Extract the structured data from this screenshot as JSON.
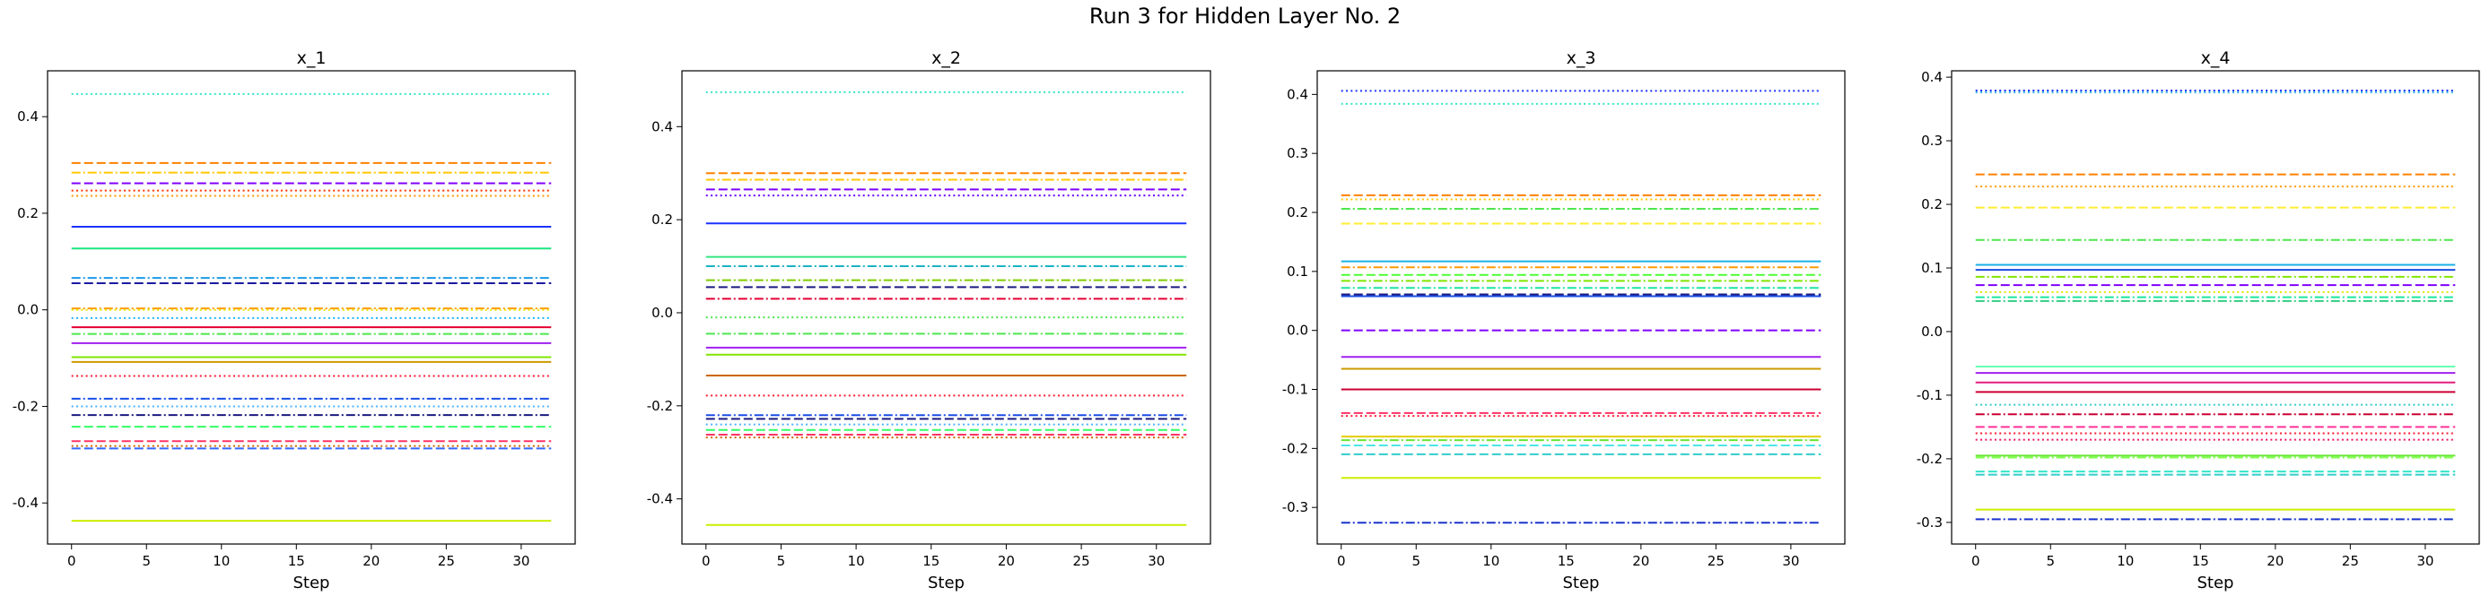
{
  "suptitle": "Run 3 for Hidden Layer No. 2",
  "chart_data": [
    {
      "type": "line",
      "title": "x_1",
      "xlabel": "Step",
      "ylabel": "",
      "xlim": [
        -1.6,
        33.6
      ],
      "ylim": [
        -0.485,
        0.495
      ],
      "xticks": [
        0,
        5,
        10,
        15,
        20,
        25,
        30
      ],
      "yticks": [
        -0.4,
        -0.2,
        0.0,
        0.2,
        0.4
      ],
      "x": [
        0,
        32
      ],
      "series": [
        {
          "value": 0.447,
          "color": "#33e6c8",
          "style": "dotted"
        },
        {
          "value": 0.304,
          "color": "#ff8000",
          "style": "dashed"
        },
        {
          "value": 0.284,
          "color": "#ffc800",
          "style": "dashdot"
        },
        {
          "value": 0.262,
          "color": "#8000ff",
          "style": "dashed"
        },
        {
          "value": 0.247,
          "color": "#ff3300",
          "style": "dotted"
        },
        {
          "value": 0.236,
          "color": "#ff9900",
          "style": "dotted"
        },
        {
          "value": 0.172,
          "color": "#1a33ff",
          "style": "solid"
        },
        {
          "value": 0.127,
          "color": "#1ae680",
          "style": "solid"
        },
        {
          "value": 0.066,
          "color": "#1a99e6",
          "style": "dashdot"
        },
        {
          "value": 0.055,
          "color": "#1a1aa0",
          "style": "dashed"
        },
        {
          "value": 0.003,
          "color": "#ff9900",
          "style": "dashdot"
        },
        {
          "value": 0.0,
          "color": "#e6e600",
          "style": "dotted"
        },
        {
          "value": -0.017,
          "color": "#1ab2ff",
          "style": "dotted"
        },
        {
          "value": -0.036,
          "color": "#e60033",
          "style": "solid"
        },
        {
          "value": -0.05,
          "color": "#4de64d",
          "style": "dashdot"
        },
        {
          "value": -0.069,
          "color": "#a020f0",
          "style": "solid"
        },
        {
          "value": -0.098,
          "color": "#80e600",
          "style": "solid"
        },
        {
          "value": -0.108,
          "color": "#cc9900",
          "style": "solid"
        },
        {
          "value": -0.137,
          "color": "#ff1a33",
          "style": "dotted"
        },
        {
          "value": -0.184,
          "color": "#1a4de6",
          "style": "dashdot"
        },
        {
          "value": -0.2,
          "color": "#4db2ff",
          "style": "dotted"
        },
        {
          "value": -0.218,
          "color": "#1a1a80",
          "style": "dashdot"
        },
        {
          "value": -0.242,
          "color": "#33ff66",
          "style": "dashed"
        },
        {
          "value": -0.272,
          "color": "#ff3366",
          "style": "dashed"
        },
        {
          "value": -0.282,
          "color": "#cc6600",
          "style": "dotted"
        },
        {
          "value": -0.287,
          "color": "#3366ff",
          "style": "dashed"
        },
        {
          "value": -0.437,
          "color": "#ccee00",
          "style": "solid"
        }
      ]
    },
    {
      "type": "line",
      "title": "x_2",
      "xlabel": "Step",
      "ylabel": "",
      "xlim": [
        -1.6,
        33.6
      ],
      "ylim": [
        -0.497,
        0.52
      ],
      "xticks": [
        0,
        5,
        10,
        15,
        20,
        25,
        30
      ],
      "yticks": [
        -0.4,
        -0.2,
        0.0,
        0.2,
        0.4
      ],
      "x": [
        0,
        32
      ],
      "series": [
        {
          "value": 0.474,
          "color": "#33e6c8",
          "style": "dotted"
        },
        {
          "value": 0.3,
          "color": "#ff8000",
          "style": "dashed"
        },
        {
          "value": 0.286,
          "color": "#ffc800",
          "style": "dashdot"
        },
        {
          "value": 0.265,
          "color": "#8000ff",
          "style": "dashed"
        },
        {
          "value": 0.252,
          "color": "#6a00ff",
          "style": "dotted"
        },
        {
          "value": 0.192,
          "color": "#1a33ff",
          "style": "solid"
        },
        {
          "value": 0.12,
          "color": "#33e680",
          "style": "solid"
        },
        {
          "value": 0.1,
          "color": "#1ab2c8",
          "style": "dashdot"
        },
        {
          "value": 0.07,
          "color": "#80cc00",
          "style": "dashdot"
        },
        {
          "value": 0.055,
          "color": "#1a1a80",
          "style": "dashed"
        },
        {
          "value": 0.03,
          "color": "#e60033",
          "style": "dashdot"
        },
        {
          "value": -0.01,
          "color": "#4de64d",
          "style": "dotted"
        },
        {
          "value": -0.045,
          "color": "#4de64d",
          "style": "dashdot"
        },
        {
          "value": -0.075,
          "color": "#a020f0",
          "style": "solid"
        },
        {
          "value": -0.09,
          "color": "#80e600",
          "style": "solid"
        },
        {
          "value": -0.135,
          "color": "#cc6600",
          "style": "solid"
        },
        {
          "value": -0.178,
          "color": "#ff1a33",
          "style": "dotted"
        },
        {
          "value": -0.22,
          "color": "#1a4de6",
          "style": "dashdot"
        },
        {
          "value": -0.228,
          "color": "#1a1a80",
          "style": "dashed"
        },
        {
          "value": -0.24,
          "color": "#4db2ff",
          "style": "dotted"
        },
        {
          "value": -0.252,
          "color": "#33ff66",
          "style": "dashed"
        },
        {
          "value": -0.262,
          "color": "#ff3366",
          "style": "dashed"
        },
        {
          "value": -0.268,
          "color": "#cc6600",
          "style": "dotted"
        },
        {
          "value": -0.456,
          "color": "#ccee00",
          "style": "solid"
        }
      ]
    },
    {
      "type": "line",
      "title": "x_3",
      "xlabel": "Step",
      "ylabel": "",
      "xlim": [
        -1.6,
        33.6
      ],
      "ylim": [
        -0.362,
        0.44
      ],
      "xticks": [
        0,
        5,
        10,
        15,
        20,
        25,
        30
      ],
      "yticks": [
        -0.3,
        -0.2,
        -0.1,
        0.0,
        0.1,
        0.2,
        0.3,
        0.4
      ],
      "x": [
        0,
        32
      ],
      "series": [
        {
          "value": 0.406,
          "color": "#1a33ff",
          "style": "dotted"
        },
        {
          "value": 0.384,
          "color": "#33e6c8",
          "style": "dotted"
        },
        {
          "value": 0.229,
          "color": "#ff8000",
          "style": "dashed"
        },
        {
          "value": 0.222,
          "color": "#ffc800",
          "style": "dotted"
        },
        {
          "value": 0.206,
          "color": "#4de64d",
          "style": "dashdot"
        },
        {
          "value": 0.181,
          "color": "#ffee33",
          "style": "dashed"
        },
        {
          "value": 0.117,
          "color": "#1ab2e6",
          "style": "solid"
        },
        {
          "value": 0.107,
          "color": "#ff9900",
          "style": "dashdot"
        },
        {
          "value": 0.094,
          "color": "#4dff33",
          "style": "dashed"
        },
        {
          "value": 0.084,
          "color": "#80e600",
          "style": "dashdot"
        },
        {
          "value": 0.072,
          "color": "#1ae6a0",
          "style": "dashdot"
        },
        {
          "value": 0.061,
          "color": "#1a1a80",
          "style": "dashed"
        },
        {
          "value": 0.058,
          "color": "#1a4de6",
          "style": "solid"
        },
        {
          "value": 0.0,
          "color": "#8000ff",
          "style": "dashed"
        },
        {
          "value": -0.045,
          "color": "#a020f0",
          "style": "solid"
        },
        {
          "value": -0.065,
          "color": "#cc9900",
          "style": "solid"
        },
        {
          "value": -0.1,
          "color": "#cc0033",
          "style": "solid"
        },
        {
          "value": -0.14,
          "color": "#ff3366",
          "style": "dashed"
        },
        {
          "value": -0.145,
          "color": "#ff1a33",
          "style": "dotted"
        },
        {
          "value": -0.18,
          "color": "#e6cc00",
          "style": "solid"
        },
        {
          "value": -0.186,
          "color": "#66e633",
          "style": "dashdot"
        },
        {
          "value": -0.195,
          "color": "#4de6e6",
          "style": "dashed"
        },
        {
          "value": -0.21,
          "color": "#33cccc",
          "style": "dashed"
        },
        {
          "value": -0.25,
          "color": "#ccee00",
          "style": "solid"
        },
        {
          "value": -0.326,
          "color": "#1a33cc",
          "style": "dashdot"
        }
      ]
    },
    {
      "type": "line",
      "title": "x_4",
      "xlabel": "Step",
      "ylabel": "",
      "xlim": [
        -1.6,
        33.6
      ],
      "ylim": [
        -0.334,
        0.41
      ],
      "xticks": [
        0,
        5,
        10,
        15,
        20,
        25,
        30
      ],
      "yticks": [
        -0.3,
        -0.2,
        -0.1,
        0.0,
        0.1,
        0.2,
        0.3,
        0.4
      ],
      "x": [
        0,
        32
      ],
      "series": [
        {
          "value": 0.379,
          "color": "#1a33ff",
          "style": "dotted"
        },
        {
          "value": 0.376,
          "color": "#33b2e6",
          "style": "dotted"
        },
        {
          "value": 0.247,
          "color": "#ff8000",
          "style": "dashed"
        },
        {
          "value": 0.228,
          "color": "#ff9900",
          "style": "dotted"
        },
        {
          "value": 0.195,
          "color": "#ffee33",
          "style": "dashed"
        },
        {
          "value": 0.144,
          "color": "#4de64d",
          "style": "dashdot"
        },
        {
          "value": 0.105,
          "color": "#1ab2e6",
          "style": "solid"
        },
        {
          "value": 0.097,
          "color": "#1a4de6",
          "style": "solid"
        },
        {
          "value": 0.086,
          "color": "#80e600",
          "style": "dashdot"
        },
        {
          "value": 0.073,
          "color": "#8000ff",
          "style": "dashed"
        },
        {
          "value": 0.062,
          "color": "#e6e600",
          "style": "dotted"
        },
        {
          "value": 0.054,
          "color": "#1ae6a0",
          "style": "dashdot"
        },
        {
          "value": 0.048,
          "color": "#33cc80",
          "style": "dashdot"
        },
        {
          "value": -0.055,
          "color": "#66ffb2",
          "style": "solid"
        },
        {
          "value": -0.065,
          "color": "#a020f0",
          "style": "solid"
        },
        {
          "value": -0.08,
          "color": "#e61a80",
          "style": "solid"
        },
        {
          "value": -0.095,
          "color": "#cc0033",
          "style": "solid"
        },
        {
          "value": -0.115,
          "color": "#33cccc",
          "style": "dotted"
        },
        {
          "value": -0.13,
          "color": "#cc0033",
          "style": "dashdot"
        },
        {
          "value": -0.15,
          "color": "#ff3399",
          "style": "dashed"
        },
        {
          "value": -0.16,
          "color": "#ff1a33",
          "style": "dotted"
        },
        {
          "value": -0.17,
          "color": "#e61a66",
          "style": "dotted"
        },
        {
          "value": -0.195,
          "color": "#66e633",
          "style": "solid"
        },
        {
          "value": -0.198,
          "color": "#80ff4d",
          "style": "dashdot"
        },
        {
          "value": -0.22,
          "color": "#33e6c8",
          "style": "dashed"
        },
        {
          "value": -0.225,
          "color": "#33cccc",
          "style": "dashed"
        },
        {
          "value": -0.28,
          "color": "#ccee00",
          "style": "solid"
        },
        {
          "value": -0.295,
          "color": "#1a33cc",
          "style": "dashdot"
        }
      ]
    }
  ]
}
